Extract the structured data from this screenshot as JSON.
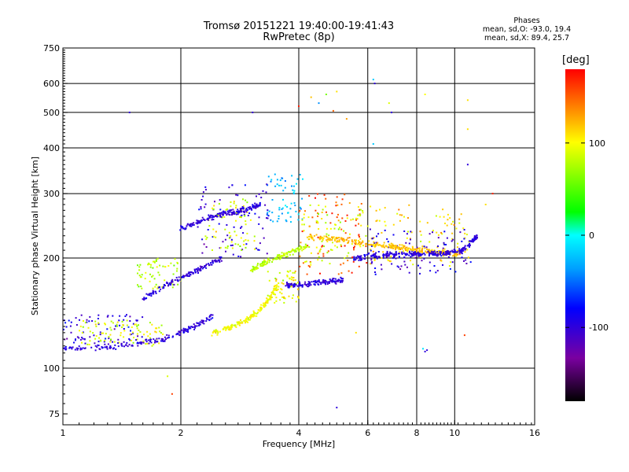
{
  "title_line1": "Tromsø 20151221 19:40:00-19:41:43",
  "title_line2": "RwPretec (8p)",
  "phases_block": {
    "heading": "Phases",
    "line_o": "mean, sd,O: -93.0, 19.4",
    "line_x": "mean, sd,X:  89.4, 25.7"
  },
  "colorbar": {
    "title": "[deg]",
    "ticks": [
      "100",
      "0",
      "-100"
    ],
    "range": [
      -180,
      180
    ]
  },
  "chart_data": {
    "type": "scatter",
    "xlabel": "Frequency [MHz]",
    "ylabel": "Stationary phase Virtual Height [km]",
    "xscale": "log",
    "yscale": "log",
    "xlim": [
      1,
      16
    ],
    "ylim": [
      70,
      750
    ],
    "x_ticks": [
      "1",
      "2",
      "4",
      "6",
      "8",
      "10",
      "16"
    ],
    "y_ticks": [
      "75",
      "100",
      "200",
      "300",
      "400",
      "500",
      "600",
      "750"
    ],
    "color_scale": "phase [deg]",
    "grid": true,
    "trace_segments": [
      {
        "x": [
          1.0,
          1.4,
          1.8,
          2.1,
          2.4
        ],
        "y": [
          113,
          115,
          120,
          128,
          138
        ],
        "phase": -100
      },
      {
        "x": [
          1.6,
          1.9,
          2.2,
          2.55
        ],
        "y": [
          155,
          172,
          185,
          200
        ],
        "phase": -100
      },
      {
        "x": [
          2.4,
          2.7,
          3.0,
          3.3,
          3.55
        ],
        "y": [
          125,
          130,
          137,
          150,
          170
        ],
        "phase": 100
      },
      {
        "x": [
          3.0,
          3.3,
          3.7,
          4.2
        ],
        "y": [
          185,
          195,
          205,
          215
        ],
        "phase": 80
      },
      {
        "x": [
          3.7,
          4.2,
          4.7,
          5.2
        ],
        "y": [
          168,
          170,
          172,
          175
        ],
        "phase": -100
      },
      {
        "x": [
          4.2,
          5.0,
          6.0,
          7.0,
          8.0,
          9.0,
          10.2
        ],
        "y": [
          228,
          225,
          220,
          215,
          210,
          208,
          205
        ],
        "phase": 120
      },
      {
        "x": [
          5.5,
          6.5,
          7.5,
          8.5,
          9.5,
          10.5,
          11.5
        ],
        "y": [
          200,
          203,
          205,
          205,
          206,
          210,
          230
        ],
        "phase": -100
      },
      {
        "x": [
          2.0,
          2.3,
          2.6,
          2.9,
          3.2
        ],
        "y": [
          240,
          255,
          265,
          270,
          280
        ],
        "phase": -100
      }
    ],
    "cluster_regions": [
      {
        "x": [
          2.2,
          3.4
        ],
        "y": [
          200,
          320
        ],
        "phase": -100
      },
      {
        "x": [
          2.3,
          3.1
        ],
        "y": [
          210,
          290
        ],
        "phase": 90
      },
      {
        "x": [
          3.3,
          4.0
        ],
        "y": [
          150,
          190
        ],
        "phase": 100
      },
      {
        "x": [
          3.3,
          4.1
        ],
        "y": [
          250,
          340
        ],
        "phase": -30
      },
      {
        "x": [
          4.0,
          6.0
        ],
        "y": [
          180,
          300
        ],
        "phase": 160
      },
      {
        "x": [
          4.0,
          6.0
        ],
        "y": [
          190,
          280
        ],
        "phase": 90
      },
      {
        "x": [
          6.0,
          11.0
        ],
        "y": [
          190,
          280
        ],
        "phase": 110
      },
      {
        "x": [
          6.0,
          11.0
        ],
        "y": [
          180,
          240
        ],
        "phase": -100
      },
      {
        "x": [
          1.0,
          1.6
        ],
        "y": [
          112,
          140
        ],
        "phase": -100
      },
      {
        "x": [
          1.1,
          1.8
        ],
        "y": [
          115,
          135
        ],
        "phase": 90
      },
      {
        "x": [
          1.55,
          2.0
        ],
        "y": [
          165,
          200
        ],
        "phase": 80
      }
    ],
    "isolated_points": [
      {
        "x": 1.48,
        "y": 500,
        "phase": -100
      },
      {
        "x": 3.05,
        "y": 500,
        "phase": -100
      },
      {
        "x": 4.0,
        "y": 520,
        "phase": 170
      },
      {
        "x": 4.3,
        "y": 550,
        "phase": 120
      },
      {
        "x": 4.5,
        "y": 530,
        "phase": -40
      },
      {
        "x": 4.7,
        "y": 560,
        "phase": 60
      },
      {
        "x": 5.0,
        "y": 570,
        "phase": 110
      },
      {
        "x": 4.9,
        "y": 505,
        "phase": 150
      },
      {
        "x": 6.2,
        "y": 615,
        "phase": -20
      },
      {
        "x": 6.25,
        "y": 600,
        "phase": -100
      },
      {
        "x": 6.8,
        "y": 530,
        "phase": 90
      },
      {
        "x": 6.9,
        "y": 500,
        "phase": -100
      },
      {
        "x": 8.4,
        "y": 560,
        "phase": 100
      },
      {
        "x": 10.8,
        "y": 540,
        "phase": 110
      },
      {
        "x": 10.8,
        "y": 450,
        "phase": 110
      },
      {
        "x": 10.8,
        "y": 360,
        "phase": -100
      },
      {
        "x": 6.2,
        "y": 410,
        "phase": -20
      },
      {
        "x": 5.3,
        "y": 480,
        "phase": 130
      },
      {
        "x": 1.85,
        "y": 95,
        "phase": 90
      },
      {
        "x": 1.9,
        "y": 85,
        "phase": 160
      },
      {
        "x": 5.0,
        "y": 78,
        "phase": -100
      },
      {
        "x": 5.6,
        "y": 125,
        "phase": 110
      },
      {
        "x": 10.6,
        "y": 123,
        "phase": 160
      },
      {
        "x": 8.3,
        "y": 113,
        "phase": -10
      },
      {
        "x": 8.4,
        "y": 111,
        "phase": -100
      },
      {
        "x": 8.5,
        "y": 112,
        "phase": -100
      },
      {
        "x": 12.5,
        "y": 300,
        "phase": 170
      },
      {
        "x": 12.0,
        "y": 280,
        "phase": 110
      }
    ]
  }
}
